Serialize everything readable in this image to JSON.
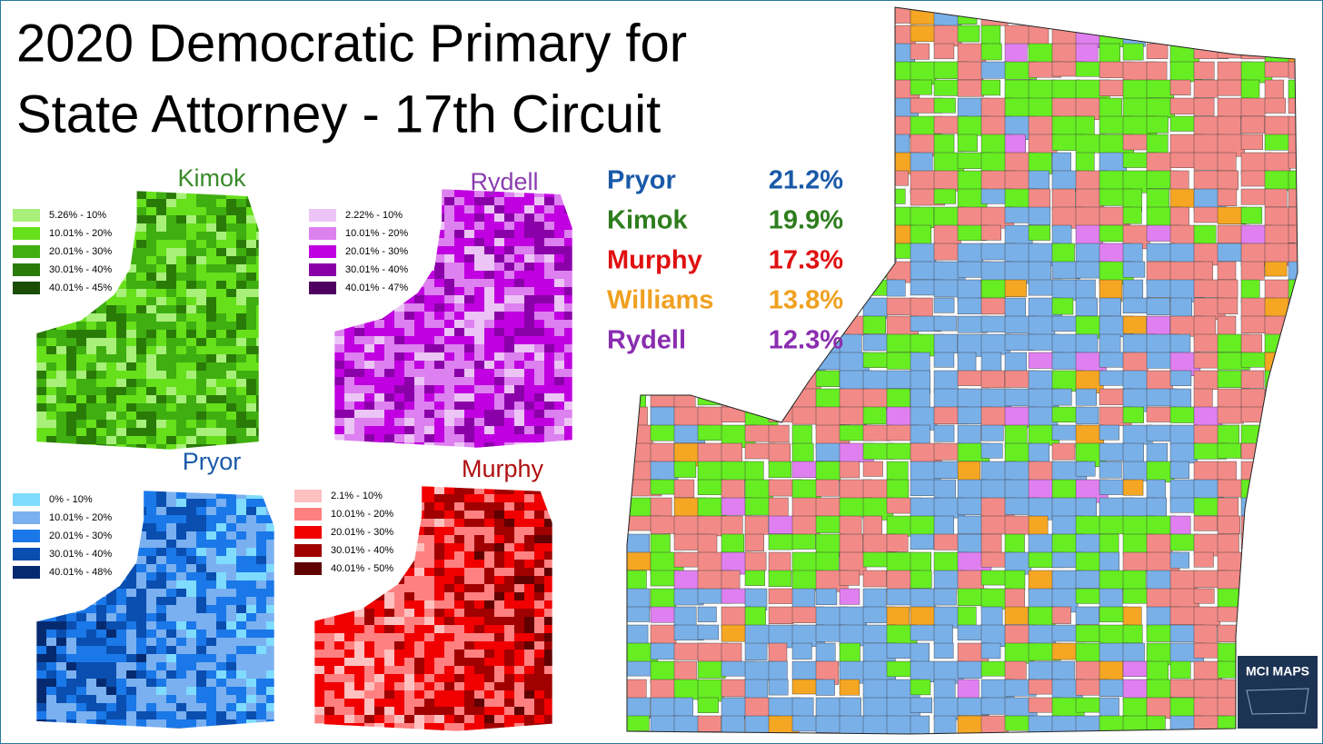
{
  "title": [
    "2020 Democratic Primary for",
    "State Attorney - 17th Circuit"
  ],
  "results": [
    {
      "name": "Pryor",
      "value": "21.2%",
      "color": "#1a5aa8"
    },
    {
      "name": "Kimok",
      "value": "19.9%",
      "color": "#2e7d1e"
    },
    {
      "name": "Murphy",
      "value": "17.3%",
      "color": "#e01010"
    },
    {
      "name": "Williams",
      "value": "13.8%",
      "color": "#f0a020"
    },
    {
      "name": "Rydell",
      "value": "12.3%",
      "color": "#8a2db0"
    }
  ],
  "small_maps": [
    {
      "name": "Kimok",
      "color": "#3a8a2a",
      "legend": [
        {
          "label": "5.26% - 10%",
          "color": "#a8f07a"
        },
        {
          "label": "10.01% - 20%",
          "color": "#66e01a"
        },
        {
          "label": "20.01% - 30%",
          "color": "#3fae10"
        },
        {
          "label": "30.01% - 40%",
          "color": "#2a7a08"
        },
        {
          "label": "40.01% - 45%",
          "color": "#1a4d05"
        }
      ]
    },
    {
      "name": "Rydell",
      "color": "#8a3db0",
      "legend": [
        {
          "label": "2.22% - 10%",
          "color": "#ecc4f5"
        },
        {
          "label": "10.01% - 20%",
          "color": "#dd80f0"
        },
        {
          "label": "20.01% - 30%",
          "color": "#c000e0"
        },
        {
          "label": "30.01% - 40%",
          "color": "#8a00a8"
        },
        {
          "label": "40.01% - 47%",
          "color": "#4d0060"
        }
      ]
    },
    {
      "name": "Pryor",
      "color": "#1a5aa8",
      "legend": [
        {
          "label": "0% - 10%",
          "color": "#7fdcff"
        },
        {
          "label": "10.01% - 20%",
          "color": "#7ab0f0"
        },
        {
          "label": "20.01% - 30%",
          "color": "#1a78e8"
        },
        {
          "label": "30.01% - 40%",
          "color": "#0a4eb0"
        },
        {
          "label": "40.01% - 48%",
          "color": "#062a70"
        }
      ]
    },
    {
      "name": "Murphy",
      "color": "#b01010",
      "legend": [
        {
          "label": "2.1% - 10%",
          "color": "#ffc0c0"
        },
        {
          "label": "10.01% - 20%",
          "color": "#ff8080"
        },
        {
          "label": "20.01% - 30%",
          "color": "#f00000"
        },
        {
          "label": "30.01% - 40%",
          "color": "#a00000"
        },
        {
          "label": "40.01% - 50%",
          "color": "#600000"
        }
      ]
    }
  ],
  "logo": "MCI MAPS"
}
